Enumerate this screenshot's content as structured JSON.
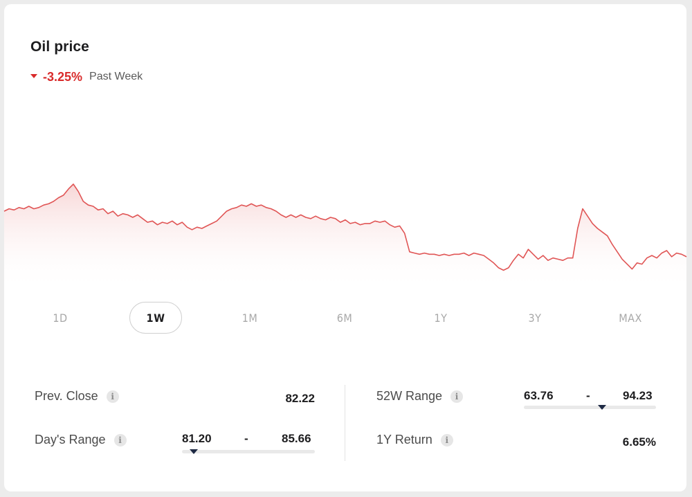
{
  "header": {
    "title": "Oil price",
    "change": "-3.25%",
    "period": "Past Week"
  },
  "colors": {
    "negative": "#d92b2b",
    "line": "#e05555",
    "accent_dark": "#1e2a44"
  },
  "tabs": [
    {
      "label": "1D",
      "active": false
    },
    {
      "label": "1W",
      "active": true
    },
    {
      "label": "1M",
      "active": false
    },
    {
      "label": "6M",
      "active": false
    },
    {
      "label": "1Y",
      "active": false
    },
    {
      "label": "3Y",
      "active": false
    },
    {
      "label": "MAX",
      "active": false
    }
  ],
  "stats": {
    "prev_close": {
      "label": "Prev. Close",
      "value": "82.22"
    },
    "days_range": {
      "label": "Day's Range",
      "low": "81.20",
      "separator": "-",
      "high": "85.66",
      "marker_fraction": 0.09
    },
    "range_52w": {
      "label": "52W Range",
      "low": "63.76",
      "separator": "-",
      "high": "94.23",
      "marker_fraction": 0.59
    },
    "return_1y": {
      "label": "1Y Return",
      "value": "6.65%"
    }
  },
  "icons": {
    "info": "i"
  },
  "chart_data": {
    "type": "area",
    "series": [
      {
        "values": [
          84.4,
          84.6,
          84.5,
          84.7,
          84.6,
          84.8,
          84.6,
          84.7,
          84.9,
          85.0,
          85.2,
          85.5,
          85.7,
          86.2,
          86.6,
          86.0,
          85.2,
          84.9,
          84.8,
          84.5,
          84.6,
          84.2,
          84.4,
          84.0,
          84.2,
          84.1,
          83.9,
          84.1,
          83.8,
          83.5,
          83.6,
          83.3,
          83.5,
          83.4,
          83.6,
          83.3,
          83.5,
          83.1,
          82.9,
          83.1,
          83.0,
          83.2,
          83.4,
          83.6,
          84.0,
          84.4,
          84.6,
          84.7,
          84.9,
          84.8,
          85.0,
          84.8,
          84.9,
          84.7,
          84.6,
          84.4,
          84.1,
          83.9,
          84.1,
          83.9,
          84.1,
          83.9,
          83.8,
          84.0,
          83.8,
          83.7,
          83.9,
          83.8,
          83.5,
          83.7,
          83.4,
          83.5,
          83.3,
          83.4,
          83.4,
          83.6,
          83.5,
          83.6,
          83.3,
          83.1,
          83.2,
          82.6,
          81.1,
          81.0,
          80.9,
          81.0,
          80.9,
          80.9,
          80.8,
          80.9,
          80.8,
          80.9,
          80.9,
          81.0,
          80.8,
          81.0,
          80.9,
          80.8,
          80.5,
          80.2,
          79.8,
          79.6,
          79.8,
          80.4,
          80.9,
          80.6,
          81.3,
          80.9,
          80.5,
          80.8,
          80.4,
          80.6,
          80.5,
          80.4,
          80.6,
          80.6,
          83.0,
          84.6,
          84.0,
          83.4,
          83.0,
          82.7,
          82.4,
          81.7,
          81.1,
          80.5,
          80.1,
          79.7,
          80.2,
          80.1,
          80.6,
          80.8,
          80.6,
          81.0,
          81.2,
          80.7,
          81.0,
          80.9,
          80.7
        ]
      }
    ]
  }
}
